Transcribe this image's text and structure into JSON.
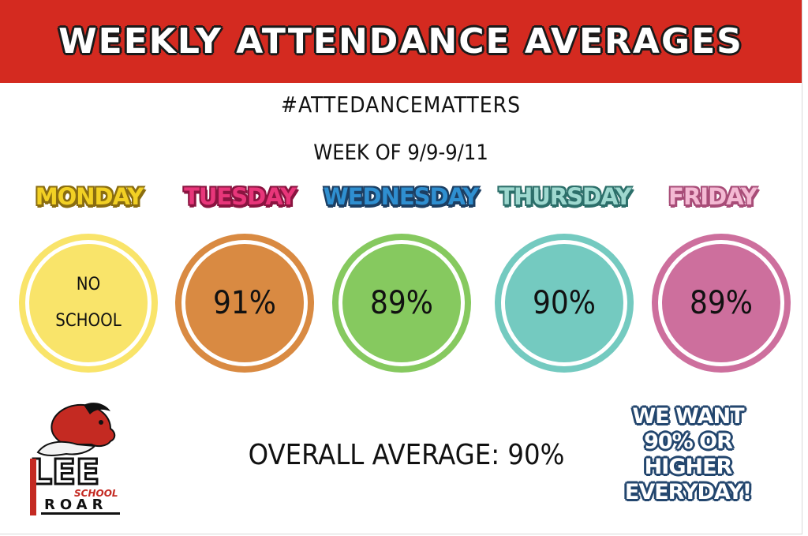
{
  "header": {
    "title": "WEEKLY ATTENDANCE AVERAGES"
  },
  "hashtag": "#ATTEDANCEMATTERS",
  "week": "WEEK OF 9/9-9/11",
  "days": [
    {
      "label": "MONDAY",
      "value": "NO SCHOOL",
      "color": "#f9e46a",
      "text_color": "#f2d024",
      "outline": "#8a6d10"
    },
    {
      "label": "TUESDAY",
      "value": "91%",
      "color": "#d98a42",
      "text_color": "#e8367a",
      "outline": "#8a1440"
    },
    {
      "label": "WEDNESDAY",
      "value": "89%",
      "color": "#86c95f",
      "text_color": "#2f8fd0",
      "outline": "#1c3f63"
    },
    {
      "label": "THURSDAY",
      "value": "90%",
      "color": "#74cac0",
      "text_color": "#9ed8cf",
      "outline": "#2c6f6a"
    },
    {
      "label": "FRIDAY",
      "value": "89%",
      "color": "#cd6f9d",
      "text_color": "#f4b9d3",
      "outline": "#a84d78"
    }
  ],
  "overall": "OVERALL AVERAGE: 90%",
  "goal": [
    "WE WANT",
    "90% OR",
    "HIGHER",
    "EVERYDAY!"
  ],
  "logo": {
    "name": "LEE",
    "school": "SCHOOL",
    "roar": "ROAR"
  },
  "colors": {
    "banner": "#d42a20",
    "goal": "#23466e"
  }
}
